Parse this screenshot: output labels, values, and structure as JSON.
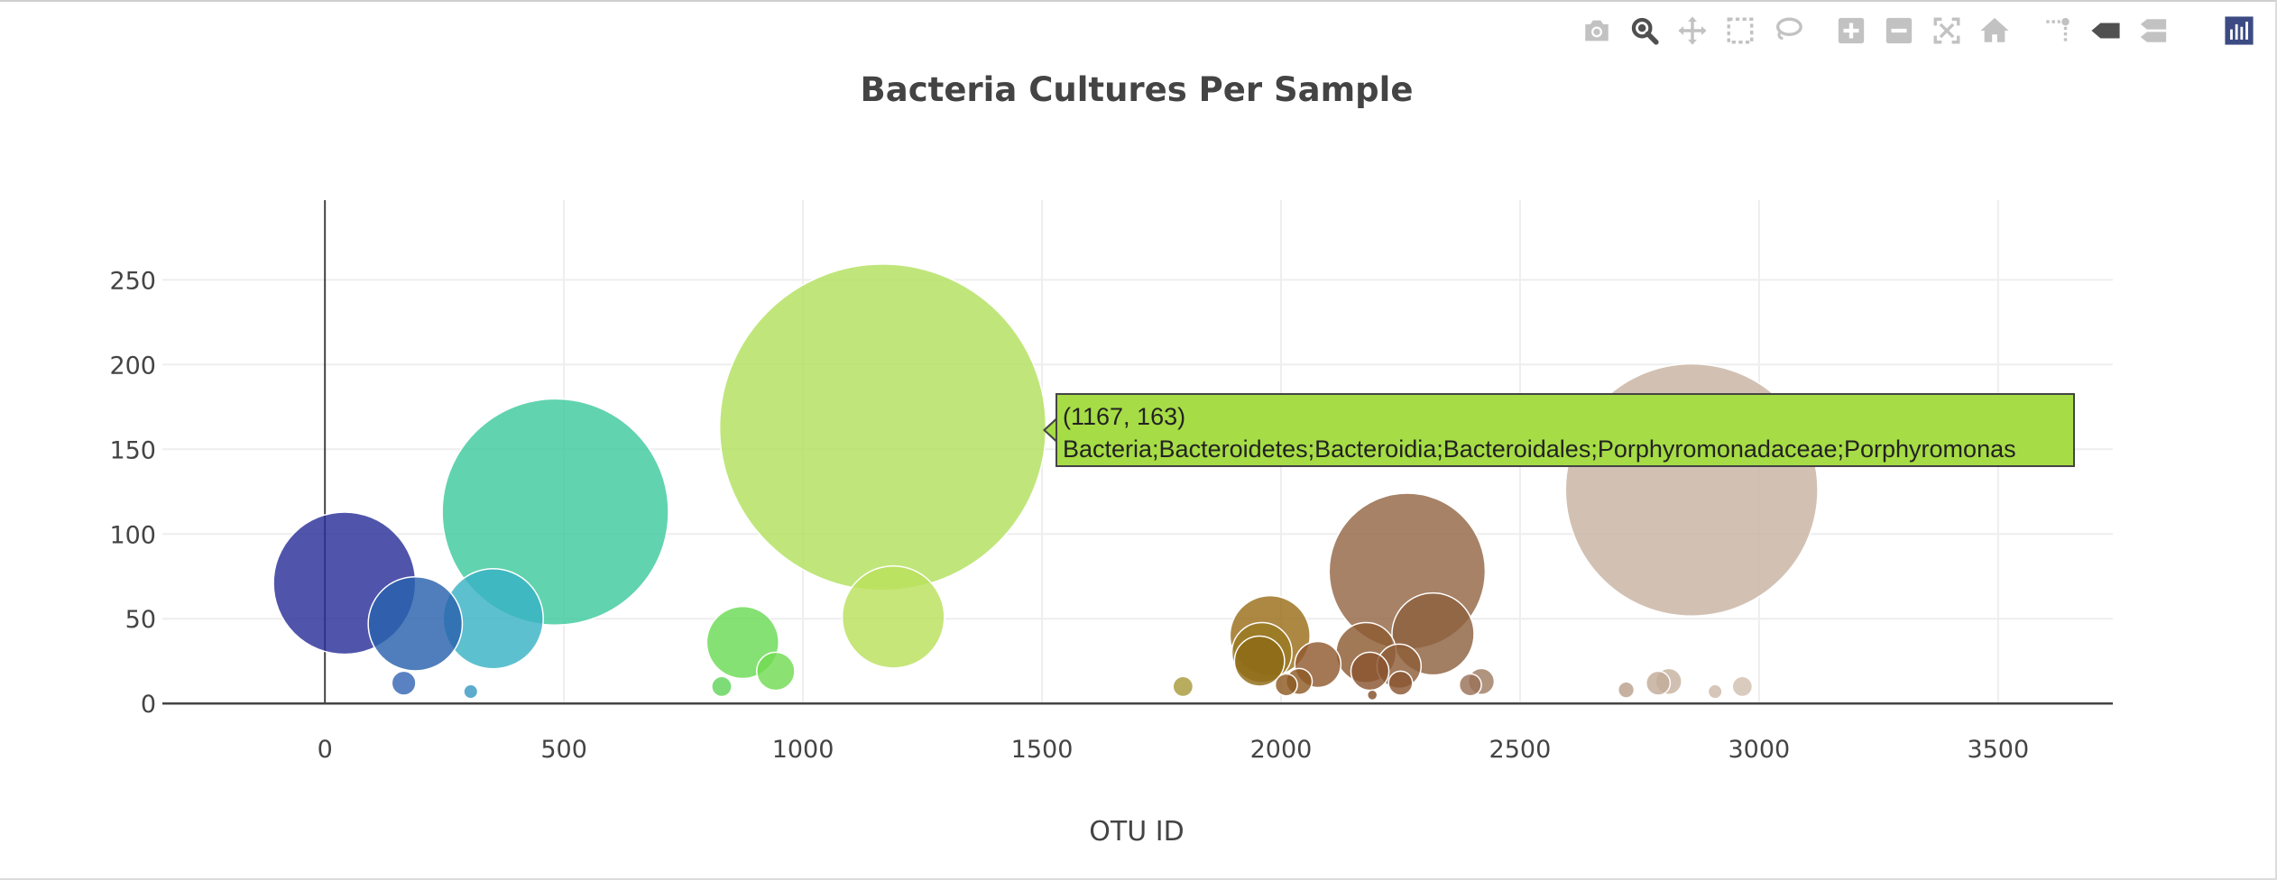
{
  "modebar": {
    "buttons": [
      {
        "name": "camera-icon"
      },
      {
        "name": "zoom-icon"
      },
      {
        "name": "pan-icon"
      },
      {
        "name": "box-select-icon"
      },
      {
        "name": "lasso-select-icon"
      },
      {
        "name": "zoom-in-icon"
      },
      {
        "name": "zoom-out-icon"
      },
      {
        "name": "autoscale-icon"
      },
      {
        "name": "reset-axes-icon"
      },
      {
        "name": "spike-lines-icon"
      },
      {
        "name": "hover-closest-icon"
      },
      {
        "name": "hover-compare-icon"
      },
      {
        "name": "plotly-logo-icon"
      }
    ]
  },
  "chart_data": {
    "type": "scatter",
    "title": "Bacteria Cultures Per Sample",
    "xlabel": "OTU ID",
    "ylabel": "",
    "xlim": [
      -340,
      3740
    ],
    "ylim": [
      -10,
      297
    ],
    "xticks": [
      0,
      500,
      1000,
      1500,
      2000,
      2500,
      3000,
      3500
    ],
    "yticks": [
      0,
      50,
      100,
      150,
      200,
      250
    ],
    "grid": true,
    "marker_size_from": "y",
    "points": [
      {
        "x": 41,
        "y": 71,
        "color": "#2a2f99"
      },
      {
        "x": 189,
        "y": 47,
        "color": "#2a62ad"
      },
      {
        "x": 165,
        "y": 12,
        "color": "#3666b4"
      },
      {
        "x": 305,
        "y": 7,
        "color": "#3a9ac2"
      },
      {
        "x": 352,
        "y": 50,
        "color": "#39b2c4"
      },
      {
        "x": 482,
        "y": 113,
        "color": "#3ec99e"
      },
      {
        "x": 830,
        "y": 10,
        "color": "#62d45a"
      },
      {
        "x": 874,
        "y": 36,
        "color": "#6bdb55"
      },
      {
        "x": 943,
        "y": 19,
        "color": "#72da52"
      },
      {
        "x": 1167,
        "y": 163,
        "color": "#b2e05e"
      },
      {
        "x": 1189,
        "y": 51,
        "color": "#b9e05c"
      },
      {
        "x": 1795,
        "y": 10,
        "color": "#a89a3a"
      },
      {
        "x": 1977,
        "y": 40,
        "color": "#9a6e1a"
      },
      {
        "x": 1960,
        "y": 30,
        "color": "#9a7a22"
      },
      {
        "x": 1955,
        "y": 25,
        "color": "#8e6a15"
      },
      {
        "x": 2011,
        "y": 11,
        "color": "#8e5a22"
      },
      {
        "x": 2038,
        "y": 13,
        "color": "#8e5a26"
      },
      {
        "x": 2077,
        "y": 23,
        "color": "#915a2f"
      },
      {
        "x": 2178,
        "y": 30,
        "color": "#8e5b32"
      },
      {
        "x": 2186,
        "y": 19,
        "color": "#8a5430"
      },
      {
        "x": 2191,
        "y": 5,
        "color": "#844f2a"
      },
      {
        "x": 2247,
        "y": 22,
        "color": "#8e5d38"
      },
      {
        "x": 2250,
        "y": 12,
        "color": "#8a5532"
      },
      {
        "x": 2264,
        "y": 78,
        "color": "#946646"
      },
      {
        "x": 2318,
        "y": 41,
        "color": "#8e623f"
      },
      {
        "x": 2396,
        "y": 11,
        "color": "#9a7258"
      },
      {
        "x": 2419,
        "y": 13,
        "color": "#a07c62"
      },
      {
        "x": 2722,
        "y": 8,
        "color": "#b9a08c"
      },
      {
        "x": 2789,
        "y": 12,
        "color": "#c2ab98"
      },
      {
        "x": 2811,
        "y": 13,
        "color": "#c7b2a0"
      },
      {
        "x": 2859,
        "y": 126,
        "color": "#c8b3a2"
      },
      {
        "x": 2908,
        "y": 7,
        "color": "#cdbaa9"
      },
      {
        "x": 2965,
        "y": 10,
        "color": "#d2c0b1"
      }
    ],
    "hover": {
      "x": 1167,
      "y": 163,
      "label": "(1167, 163)",
      "text": "Bacteria;Bacteroidetes;Bacteroidia;Bacteroidales;Porphyromonadaceae;Porphyromonas",
      "color": "#a6dc45"
    }
  }
}
